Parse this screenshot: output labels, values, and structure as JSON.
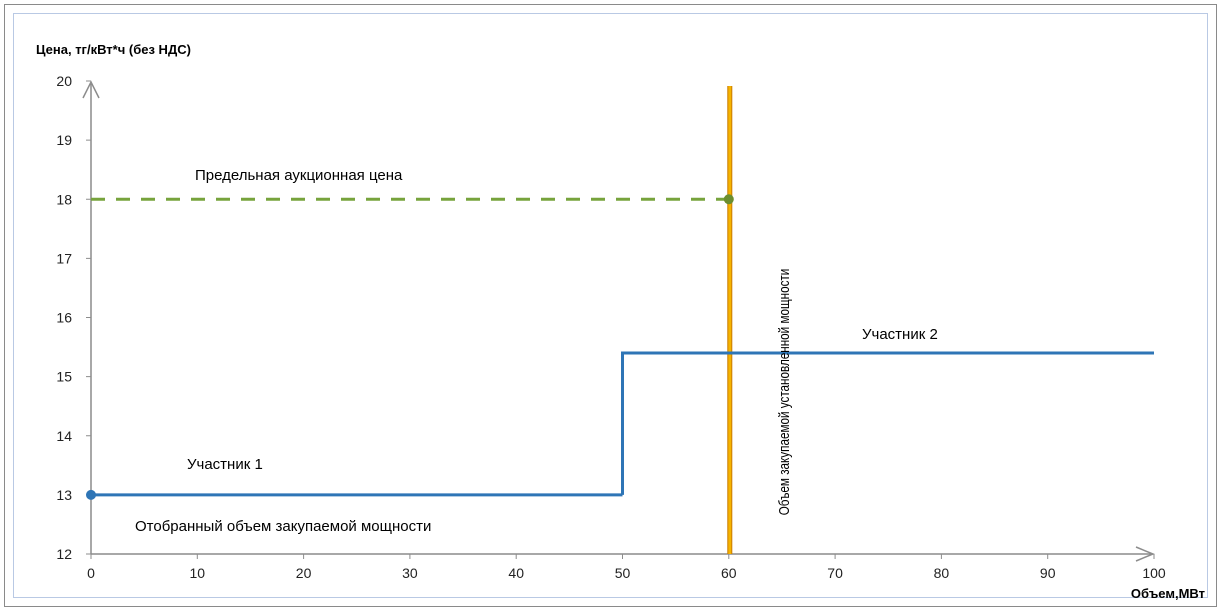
{
  "chart_data": {
    "type": "line",
    "ylabel": "Цена, тг/кВт*ч (без НДС)",
    "xlabel": "Объем,МВт",
    "xlim": [
      0,
      100
    ],
    "ylim": [
      12,
      20
    ],
    "x_ticks": [
      "0",
      "10",
      "20",
      "30",
      "40",
      "50",
      "60",
      "70",
      "80",
      "90",
      "100"
    ],
    "y_ticks": [
      "12",
      "13",
      "14",
      "15",
      "16",
      "17",
      "18",
      "19",
      "20"
    ],
    "grid": false,
    "series": [
      {
        "name": "Участник 1",
        "color": "#2e75b6",
        "points": [
          [
            0,
            13
          ],
          [
            50,
            13
          ]
        ]
      },
      {
        "name": "Участник 2",
        "color": "#2e75b6",
        "points": [
          [
            50,
            13
          ],
          [
            50,
            15.4
          ],
          [
            100,
            15.4
          ]
        ]
      },
      {
        "name": "Предельная аукционная цена",
        "color": "#77a33c",
        "style": "dashed",
        "points": [
          [
            0,
            18
          ],
          [
            60,
            18
          ]
        ]
      }
    ],
    "vertical_line": {
      "x": 60,
      "color": "#f5b400",
      "label": "Объем закупаемой установленной мощности"
    },
    "annotations": {
      "limit_price": "Предельная аукционная цена",
      "participant1": "Участник 1",
      "participant2": "Участник 2",
      "selected_volume": "Отобранный объем закупаемой мощности",
      "installed_capacity": "Объем закупаемой установленной мощности"
    }
  }
}
